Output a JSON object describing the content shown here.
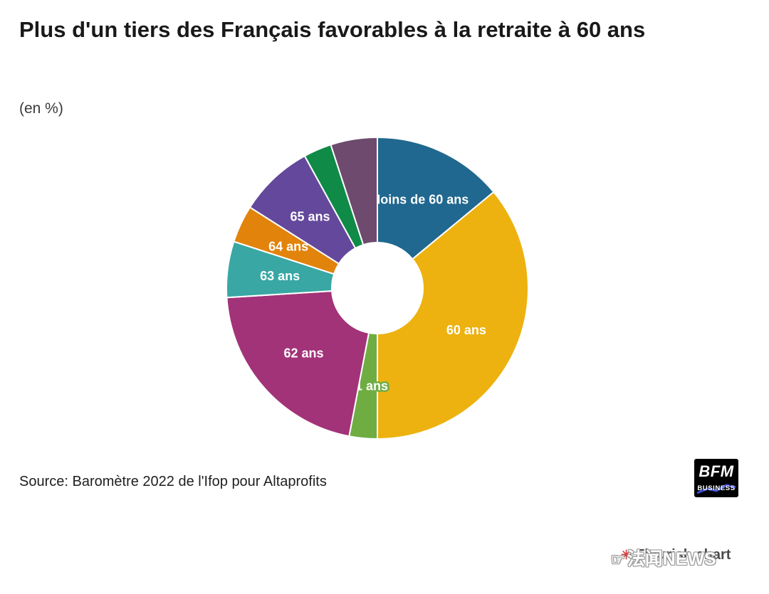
{
  "title": "Plus d'un tiers des Français favorables à la retraite à 60 ans",
  "subtitle": "(en %)",
  "source": "Source: Baromètre 2022 de l'Ifop pour Altaprofits",
  "logo": {
    "line1": "BFM",
    "line2": "BUSINESS"
  },
  "attribution": "Flourish chart",
  "watermark": {
    "icon": "☞",
    "text": "法闻NEWS"
  },
  "chart_data": {
    "type": "pie",
    "subtype": "donut",
    "unit": "%",
    "title": "Plus d'un tiers des Français favorables à la retraite à 60 ans",
    "start_angle_deg": 0,
    "clockwise": true,
    "inner_radius_ratio": 0.3,
    "legend_position": "none",
    "segments": [
      {
        "label": "Moins de 60 ans",
        "value": 14,
        "color": "#20688f",
        "label_visible": true
      },
      {
        "label": "60 ans",
        "value": 36,
        "color": "#edb20f",
        "label_visible": true
      },
      {
        "label": "61 ans",
        "value": 3,
        "color": "#6fad43",
        "label_visible": true
      },
      {
        "label": "62 ans",
        "value": 21,
        "color": "#a23378",
        "label_visible": true
      },
      {
        "label": "63 ans",
        "value": 6,
        "color": "#39a7a4",
        "label_visible": true
      },
      {
        "label": "64 ans",
        "value": 4,
        "color": "#e2830c",
        "label_visible": true
      },
      {
        "label": "65 ans",
        "value": 8,
        "color": "#64489c",
        "label_visible": true
      },
      {
        "label": "",
        "value": 3,
        "color": "#0f8a47",
        "label_visible": false
      },
      {
        "label": "",
        "value": 5,
        "color": "#6e4a6e",
        "label_visible": false
      }
    ]
  }
}
